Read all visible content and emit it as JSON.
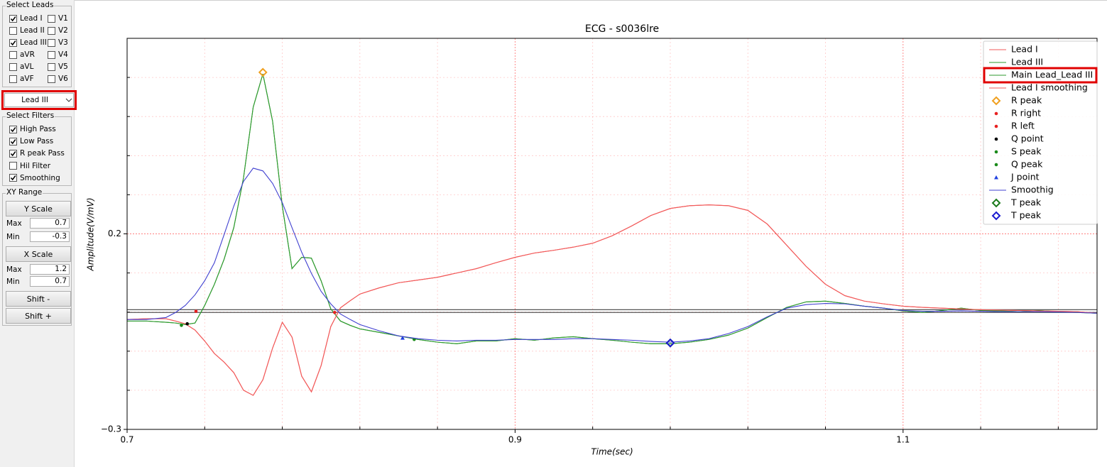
{
  "panel": {
    "leads": {
      "title": "Select Leads",
      "items": [
        {
          "label": "Lead I",
          "checked": true
        },
        {
          "label": "Lead II",
          "checked": false
        },
        {
          "label": "Lead III",
          "checked": true
        },
        {
          "label": "aVR",
          "checked": false
        },
        {
          "label": "aVL",
          "checked": false
        },
        {
          "label": "aVF",
          "checked": false
        },
        {
          "label": "V1",
          "checked": false
        },
        {
          "label": "V2",
          "checked": false
        },
        {
          "label": "V3",
          "checked": false
        },
        {
          "label": "V4",
          "checked": false
        },
        {
          "label": "V5",
          "checked": false
        },
        {
          "label": "V6",
          "checked": false
        }
      ]
    },
    "lead_select": {
      "value": "Lead III",
      "highlight": true
    },
    "filters": {
      "title": "Select Filters",
      "items": [
        {
          "label": "High Pass",
          "checked": true
        },
        {
          "label": "Low Pass",
          "checked": true
        },
        {
          "label": "R peak Pass",
          "checked": true
        },
        {
          "label": "Hil Filter",
          "checked": false
        },
        {
          "label": "Smoothing",
          "checked": true
        }
      ]
    },
    "xy_range": {
      "title": "XY Range",
      "y_button": "Y Scale",
      "y_max": {
        "label": "Max",
        "value": "0.7"
      },
      "y_min": {
        "label": "Min",
        "value": "-0.3"
      },
      "x_button": "X Scale",
      "x_max": {
        "label": "Max",
        "value": "1.2"
      },
      "x_min": {
        "label": "Min",
        "value": "0.7"
      },
      "shift_minus": "Shift -",
      "shift_plus": "Shift +"
    }
  },
  "chart_data": {
    "type": "line",
    "title": "ECG - s0036lre",
    "x_label": "Time(sec)",
    "y_label": "Amplitude(V/mV)",
    "xlim": [
      0.7,
      1.2
    ],
    "ylim": [
      -0.3,
      0.7
    ],
    "xticks": [
      0.7,
      0.9,
      1.1
    ],
    "yticks": [
      {
        "value": -0.3,
        "label": "−0.3"
      },
      0.2
    ],
    "xminorticks": [
      0.74,
      0.78,
      0.82,
      0.86,
      0.94,
      0.98,
      1.02,
      1.06,
      1.14,
      1.18
    ],
    "yminorticks": [
      -0.2,
      -0.1,
      0.0,
      0.1,
      0.3,
      0.4,
      0.5,
      0.6
    ],
    "grid": true,
    "grid_color": "#ff6060",
    "hlines": [
      0.006,
      -0.001
    ],
    "hline_color": "#555555",
    "legend": "upper right",
    "x": [
      0.7,
      0.71,
      0.72,
      0.725,
      0.73,
      0.735,
      0.74,
      0.745,
      0.75,
      0.755,
      0.76,
      0.765,
      0.77,
      0.775,
      0.78,
      0.785,
      0.79,
      0.795,
      0.8,
      0.805,
      0.81,
      0.815,
      0.82,
      0.83,
      0.84,
      0.85,
      0.86,
      0.87,
      0.88,
      0.89,
      0.9,
      0.91,
      0.92,
      0.93,
      0.94,
      0.95,
      0.96,
      0.97,
      0.98,
      0.99,
      1.0,
      1.01,
      1.02,
      1.03,
      1.04,
      1.05,
      1.06,
      1.07,
      1.08,
      1.09,
      1.1,
      1.11,
      1.12,
      1.13,
      1.14,
      1.15,
      1.16,
      1.17,
      1.18,
      1.19,
      1.2
    ],
    "series": [
      {
        "name": "Lead I",
        "color": "#f25a5a",
        "values": [
          -0.019,
          -0.017,
          -0.017,
          -0.023,
          -0.03,
          -0.046,
          -0.074,
          -0.106,
          -0.128,
          -0.155,
          -0.2,
          -0.213,
          -0.173,
          -0.092,
          -0.026,
          -0.064,
          -0.164,
          -0.204,
          -0.137,
          -0.037,
          0.011,
          0.029,
          0.046,
          0.062,
          0.075,
          0.082,
          0.089,
          0.1,
          0.111,
          0.126,
          0.14,
          0.151,
          0.158,
          0.166,
          0.176,
          0.195,
          0.22,
          0.247,
          0.265,
          0.272,
          0.274,
          0.272,
          0.26,
          0.225,
          0.171,
          0.117,
          0.071,
          0.042,
          0.028,
          0.021,
          0.015,
          0.012,
          0.01,
          0.008,
          0.006,
          0.005,
          0.004,
          0.003,
          0.002,
          0.001,
          -0.003
        ]
      },
      {
        "name": "Lead III",
        "color": "#2e9a2e",
        "values": [
          -0.023,
          -0.023,
          -0.026,
          -0.028,
          -0.032,
          -0.028,
          0.017,
          0.071,
          0.135,
          0.216,
          0.343,
          0.524,
          0.609,
          0.488,
          0.271,
          0.111,
          0.14,
          0.138,
          0.08,
          0.008,
          -0.023,
          -0.034,
          -0.043,
          -0.052,
          -0.061,
          -0.07,
          -0.077,
          -0.081,
          -0.074,
          -0.074,
          -0.068,
          -0.072,
          -0.066,
          -0.063,
          -0.068,
          -0.072,
          -0.077,
          -0.081,
          -0.081,
          -0.077,
          -0.07,
          -0.059,
          -0.041,
          -0.014,
          0.012,
          0.026,
          0.028,
          0.022,
          0.015,
          0.01,
          0.003,
          -0.001,
          0.004,
          0.01,
          0.004,
          0.003,
          0.001,
          0.004,
          0.001,
          -0.001,
          -0.003
        ]
      },
      {
        "name": "Main Lead_Lead III",
        "color": "#2e9a2e",
        "highlight": true,
        "values": [
          -0.023,
          -0.023,
          -0.026,
          -0.028,
          -0.032,
          -0.028,
          0.017,
          0.071,
          0.135,
          0.216,
          0.343,
          0.524,
          0.609,
          0.488,
          0.271,
          0.111,
          0.14,
          0.138,
          0.08,
          0.008,
          -0.023,
          -0.034,
          -0.043,
          -0.052,
          -0.061,
          -0.07,
          -0.077,
          -0.081,
          -0.074,
          -0.074,
          -0.068,
          -0.072,
          -0.066,
          -0.063,
          -0.068,
          -0.072,
          -0.077,
          -0.081,
          -0.081,
          -0.077,
          -0.07,
          -0.059,
          -0.041,
          -0.014,
          0.012,
          0.026,
          0.028,
          0.022,
          0.015,
          0.01,
          0.003,
          -0.001,
          0.004,
          0.01,
          0.004,
          0.003,
          0.001,
          0.004,
          0.001,
          -0.001,
          -0.003
        ]
      },
      {
        "name": "Lead I smoothing",
        "color": "#f25a5a",
        "values": [
          -0.019,
          -0.017,
          -0.017,
          -0.023,
          -0.03,
          -0.046,
          -0.074,
          -0.106,
          -0.128,
          -0.155,
          -0.2,
          -0.213,
          -0.173,
          -0.092,
          -0.026,
          -0.064,
          -0.164,
          -0.204,
          -0.137,
          -0.037,
          0.011,
          0.029,
          0.046,
          0.062,
          0.075,
          0.082,
          0.089,
          0.1,
          0.111,
          0.126,
          0.14,
          0.151,
          0.158,
          0.166,
          0.176,
          0.195,
          0.22,
          0.247,
          0.265,
          0.272,
          0.274,
          0.272,
          0.26,
          0.225,
          0.171,
          0.117,
          0.071,
          0.042,
          0.028,
          0.021,
          0.015,
          0.012,
          0.01,
          0.008,
          0.006,
          0.005,
          0.004,
          0.003,
          0.002,
          0.001,
          -0.003
        ]
      },
      {
        "name": "R peak",
        "color": "#f0a020",
        "marker": "diamond",
        "x": [
          0.77
        ],
        "values": [
          0.613
        ]
      },
      {
        "name": "R right",
        "color": "#e82020",
        "marker": "dot",
        "x": [
          0.807
        ],
        "values": [
          -0.001
        ]
      },
      {
        "name": "R left",
        "color": "#e82020",
        "marker": "dot",
        "x": [
          0.7355
        ],
        "values": [
          0.002
        ]
      },
      {
        "name": "Q point",
        "color": "#000000",
        "marker": "dot",
        "x": [
          0.731
        ],
        "values": [
          -0.03
        ]
      },
      {
        "name": "S peak",
        "color": "#1a8a1a",
        "marker": "dot",
        "x": [
          0.848
        ],
        "values": [
          -0.07
        ]
      },
      {
        "name": "Q peak",
        "color": "#1a8a1a",
        "marker": "dot",
        "x": [
          0.728
        ],
        "values": [
          -0.034
        ]
      },
      {
        "name": "J point",
        "color": "#2040e0",
        "marker": "triangle",
        "x": [
          0.842
        ],
        "values": [
          -0.066
        ]
      },
      {
        "name": "Smoothig",
        "color": "#4040d0",
        "values": [
          -0.019,
          -0.019,
          -0.014,
          -0.001,
          0.017,
          0.044,
          0.08,
          0.126,
          0.198,
          0.271,
          0.334,
          0.368,
          0.361,
          0.329,
          0.28,
          0.216,
          0.153,
          0.099,
          0.053,
          0.021,
          -0.005,
          -0.019,
          -0.032,
          -0.048,
          -0.061,
          -0.068,
          -0.072,
          -0.074,
          -0.072,
          -0.072,
          -0.07,
          -0.07,
          -0.07,
          -0.068,
          -0.068,
          -0.07,
          -0.072,
          -0.075,
          -0.077,
          -0.074,
          -0.068,
          -0.055,
          -0.037,
          -0.012,
          0.01,
          0.019,
          0.022,
          0.021,
          0.015,
          0.01,
          0.004,
          0.002,
          0.002,
          0.003,
          0.002,
          0.001,
          0.001,
          0.001,
          0.0,
          -0.001,
          -0.003
        ]
      },
      {
        "name": "T peak",
        "color": "#1a7a1a",
        "marker": "diamond",
        "x": [
          0.98
        ],
        "values": [
          -0.079
        ]
      },
      {
        "name": "T peak",
        "color": "#1a1ad0",
        "marker": "diamond",
        "x": [
          0.98
        ],
        "values": [
          -0.079
        ]
      }
    ]
  }
}
